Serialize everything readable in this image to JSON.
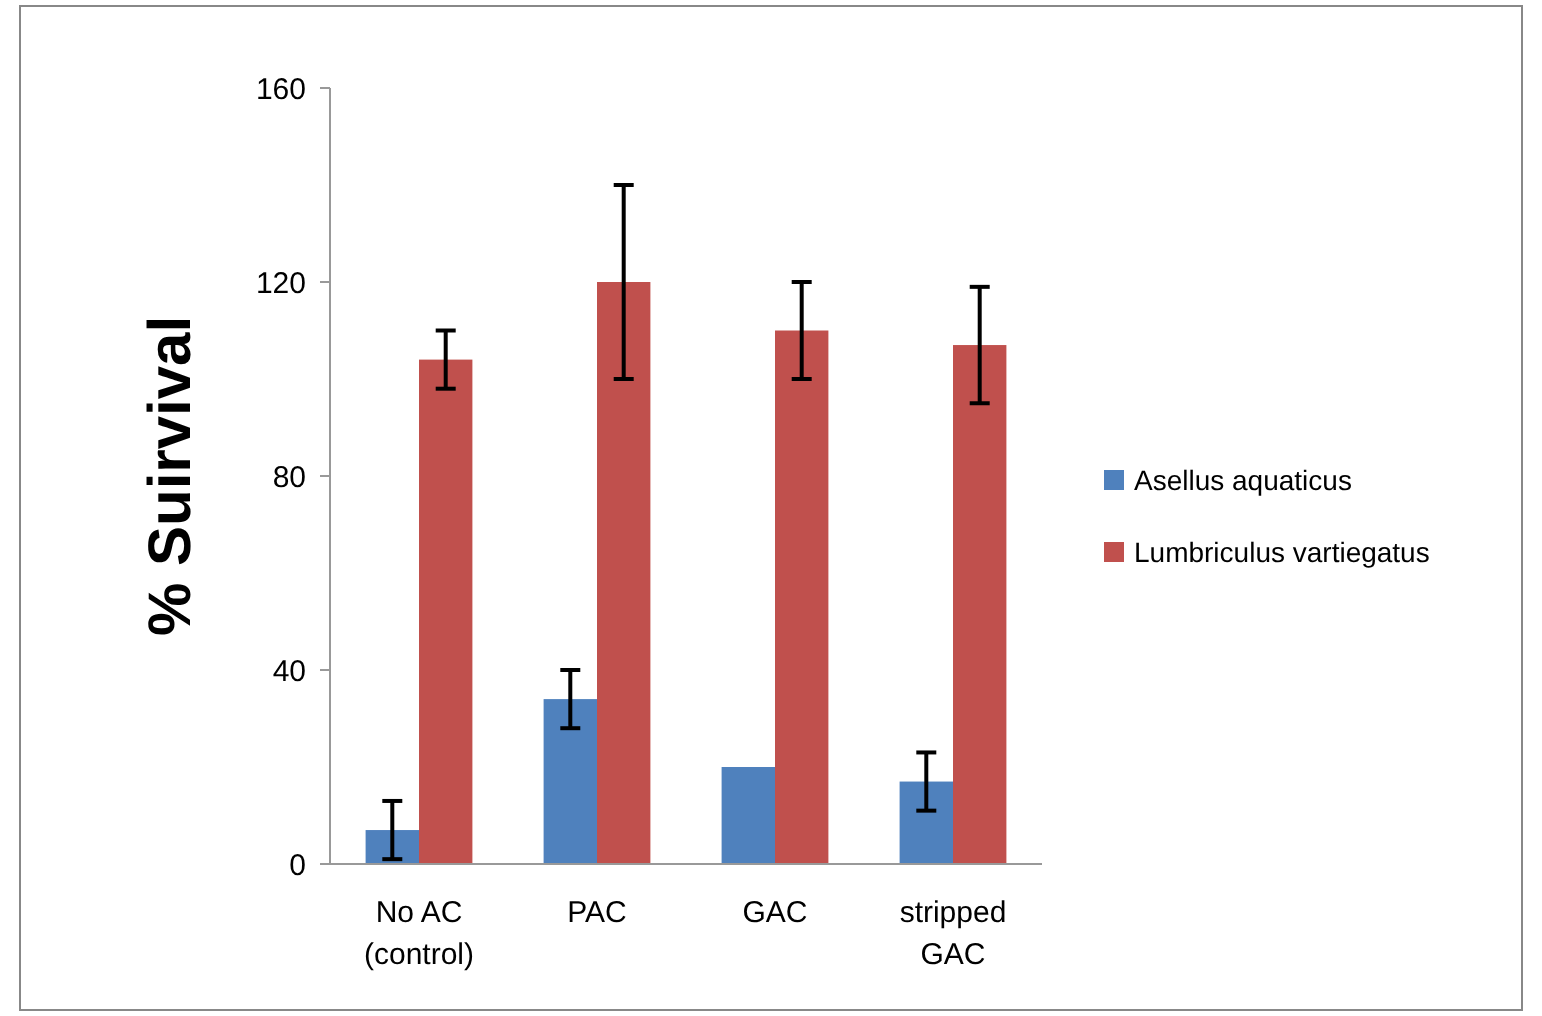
{
  "chart_data": {
    "type": "bar",
    "ylabel": "% Suirvival",
    "categories": [
      "No AC\n(control)",
      "PAC",
      "GAC",
      "stripped\nGAC"
    ],
    "series": [
      {
        "name": "Asellus aquaticus",
        "color": "#4f81bd",
        "values": [
          7,
          34,
          20,
          17
        ],
        "errors": [
          6,
          6,
          null,
          6
        ]
      },
      {
        "name": "Lumbriculus vartiegatus",
        "color": "#c0504d",
        "values": [
          104,
          120,
          110,
          107
        ],
        "errors": [
          6,
          20,
          10,
          12
        ]
      }
    ],
    "ylim": [
      0,
      160
    ],
    "yticks": [
      0,
      40,
      80,
      120,
      160
    ],
    "grid": false,
    "legend": "right"
  }
}
